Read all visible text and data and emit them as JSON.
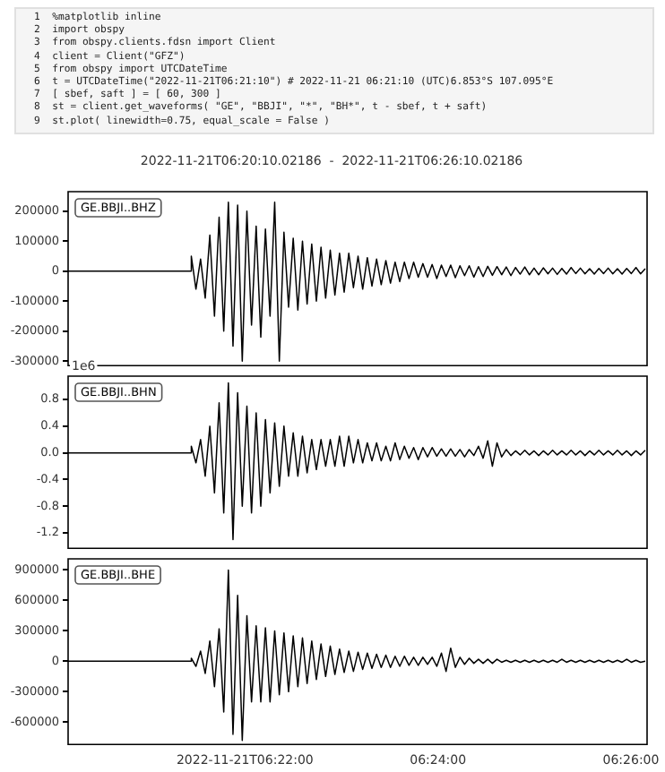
{
  "chart_data": [
    {
      "type": "other",
      "annotations": [
        "1  %matplotlib inline",
        "2  import obspy",
        "3  from obspy.clients.fdsn import Client",
        "4  client = Client(\"GFZ\")",
        "5  from obspy import UTCDateTime",
        "6  t = UTCDateTime(\"2022-11-21T06:21:10\") # 2022-11-21 06:21:10 (UTC)6.853°S 107.095°E",
        "7  [ sbef, saft ] = [ 60, 300 ]",
        "8  st = client.get_waveforms( \"GE\", \"BBJI\", \"*\", \"BH*\", t - sbef, t + saft)",
        "9  st.plot( linewidth=0.75, equal_scale = False )"
      ]
    },
    {
      "type": "line",
      "title": "2022-11-21T06:20:10.02186  -  2022-11-21T06:26:10.02186",
      "legend": "top left",
      "tick_labels": "y",
      "xlim": [
        6.33612,
        6.43612
      ],
      "ylim": [
        -315000,
        265000
      ],
      "yticks": [
        -300000,
        -200000,
        -100000,
        0,
        100000,
        200000
      ],
      "x": [
        6.33612,
        6.3572,
        6.3574,
        6.3582,
        6.359,
        6.3598,
        6.3606,
        6.3614,
        6.3622,
        6.363,
        6.3638,
        6.3646,
        6.3654,
        6.3662,
        6.367,
        6.3678,
        6.3686,
        6.3694,
        6.3702,
        6.371,
        6.3718,
        6.3726,
        6.3734,
        6.3742,
        6.375,
        6.3758,
        6.3766,
        6.3774,
        6.3782,
        6.379,
        6.3798,
        6.3806,
        6.3814,
        6.3822,
        6.383,
        6.3838,
        6.3846,
        6.3854,
        6.3862,
        6.387,
        6.3878,
        6.3886,
        6.3894,
        6.3902,
        6.391,
        6.3918,
        6.3926,
        6.3934,
        6.3942,
        6.395,
        6.3958,
        6.3966,
        6.3974,
        6.3982,
        6.399,
        6.3998,
        6.4006,
        6.4014,
        6.4022,
        6.403,
        6.4038,
        6.4046,
        6.4054,
        6.4062,
        6.407,
        6.4078,
        6.4086,
        6.4094,
        6.4102,
        6.411,
        6.4118,
        6.4126,
        6.4134,
        6.4142,
        6.415,
        6.4158,
        6.4166,
        6.4174,
        6.4182,
        6.419,
        6.4198,
        6.4206,
        6.4214,
        6.4222,
        6.423,
        6.4238,
        6.4246,
        6.4254,
        6.4262,
        6.427,
        6.4278,
        6.4286,
        6.4294,
        6.4302,
        6.431,
        6.4318,
        6.4326,
        6.4334,
        6.4342,
        6.435,
        6.4358
      ],
      "series": [
        {
          "name": "GE.BBJI..BHZ",
          "color": "#000000",
          "values": [
            0,
            0,
            50000,
            -60000,
            40000,
            -90000,
            120000,
            -150000,
            180000,
            -200000,
            230000,
            -250000,
            220000,
            -300000,
            200000,
            -180000,
            150000,
            -220000,
            140000,
            -150000,
            230000,
            -300000,
            130000,
            -120000,
            110000,
            -130000,
            100000,
            -110000,
            90000,
            -100000,
            80000,
            -90000,
            70000,
            -80000,
            60000,
            -70000,
            60000,
            -55000,
            50000,
            -60000,
            45000,
            -50000,
            40000,
            -45000,
            35000,
            -40000,
            30000,
            -35000,
            30000,
            -25000,
            30000,
            -20000,
            25000,
            -20000,
            22000,
            -25000,
            20000,
            -18000,
            20000,
            -22000,
            18000,
            -15000,
            18000,
            -20000,
            15000,
            -18000,
            16000,
            -14000,
            15000,
            -12000,
            14000,
            -15000,
            12000,
            -10000,
            14000,
            -12000,
            10000,
            -12000,
            11000,
            -9000,
            10000,
            -11000,
            9000,
            -10000,
            12000,
            -8000,
            10000,
            -9000,
            8000,
            -10000,
            9000,
            -8000,
            10000,
            -9000,
            8000,
            -10000,
            9000,
            -8000,
            12000,
            -9000,
            8000
          ]
        }
      ]
    },
    {
      "type": "line",
      "legend": "top left",
      "tick_labels": "y",
      "annotations": [
        "1e6"
      ],
      "xlim": [
        6.33612,
        6.43612
      ],
      "ylim": [
        -1.43,
        1.15
      ],
      "yticks": [
        -1.2,
        -0.8,
        -0.4,
        {
          "value": 0,
          "label": "0.0"
        },
        0.4,
        0.8
      ],
      "x": [
        6.33612,
        6.3572,
        6.3574,
        6.3582,
        6.359,
        6.3598,
        6.3606,
        6.3614,
        6.3622,
        6.363,
        6.3638,
        6.3646,
        6.3654,
        6.3662,
        6.367,
        6.3678,
        6.3686,
        6.3694,
        6.3702,
        6.371,
        6.3718,
        6.3726,
        6.3734,
        6.3742,
        6.375,
        6.3758,
        6.3766,
        6.3774,
        6.3782,
        6.379,
        6.3798,
        6.3806,
        6.3814,
        6.3822,
        6.383,
        6.3838,
        6.3846,
        6.3854,
        6.3862,
        6.387,
        6.3878,
        6.3886,
        6.3894,
        6.3902,
        6.391,
        6.3918,
        6.3926,
        6.3934,
        6.3942,
        6.395,
        6.3958,
        6.3966,
        6.3974,
        6.3982,
        6.399,
        6.3998,
        6.4006,
        6.4014,
        6.4022,
        6.403,
        6.4038,
        6.4046,
        6.4054,
        6.4062,
        6.407,
        6.4078,
        6.4086,
        6.4094,
        6.4102,
        6.411,
        6.4118,
        6.4126,
        6.4134,
        6.4142,
        6.415,
        6.4158,
        6.4166,
        6.4174,
        6.4182,
        6.419,
        6.4198,
        6.4206,
        6.4214,
        6.4222,
        6.423,
        6.4238,
        6.4246,
        6.4254,
        6.4262,
        6.427,
        6.4278,
        6.4286,
        6.4294,
        6.4302,
        6.431,
        6.4318,
        6.4326,
        6.4334,
        6.4342,
        6.435,
        6.4358
      ],
      "series": [
        {
          "name": "GE.BBJI..BHN",
          "color": "#000000",
          "values": [
            0,
            0,
            0.1,
            -0.15,
            0.2,
            -0.35,
            0.4,
            -0.6,
            0.75,
            -0.9,
            1.05,
            -1.3,
            0.9,
            -0.8,
            0.7,
            -0.9,
            0.6,
            -0.8,
            0.5,
            -0.6,
            0.45,
            -0.5,
            0.4,
            -0.35,
            0.3,
            -0.35,
            0.25,
            -0.3,
            0.2,
            -0.25,
            0.2,
            -0.2,
            0.2,
            -0.2,
            0.25,
            -0.2,
            0.25,
            -0.15,
            0.2,
            -0.15,
            0.15,
            -0.12,
            0.15,
            -0.12,
            0.1,
            -0.12,
            0.15,
            -0.1,
            0.1,
            -0.08,
            0.08,
            -0.1,
            0.08,
            -0.06,
            0.08,
            -0.05,
            0.06,
            -0.05,
            0.06,
            -0.05,
            0.05,
            -0.06,
            0.05,
            -0.04,
            0.1,
            -0.08,
            0.18,
            -0.2,
            0.15,
            -0.06,
            0.05,
            -0.04,
            0.03,
            -0.03,
            0.04,
            -0.03,
            0.03,
            -0.04,
            0.03,
            -0.03,
            0.04,
            -0.03,
            0.03,
            -0.03,
            0.04,
            -0.03,
            0.03,
            -0.04,
            0.03,
            -0.03,
            0.04,
            -0.03,
            0.03,
            -0.03,
            0.04,
            -0.03,
            0.03,
            -0.04,
            0.03,
            -0.03,
            0.04
          ]
        }
      ]
    },
    {
      "type": "line",
      "legend": "top left",
      "xlim": [
        6.33612,
        6.43612
      ],
      "xticks": [
        {
          "value": 6.36667,
          "label": "2022-11-21T06:22:00"
        },
        {
          "value": 6.4,
          "label": "06:24:00"
        },
        {
          "value": 6.43333,
          "label": "06:26:00"
        }
      ],
      "ylim": [
        -820000,
        1010000
      ],
      "yticks": [
        -600000,
        -300000,
        0,
        300000,
        600000,
        900000
      ],
      "x": [
        6.33612,
        6.3572,
        6.3574,
        6.3582,
        6.359,
        6.3598,
        6.3606,
        6.3614,
        6.3622,
        6.363,
        6.3638,
        6.3646,
        6.3654,
        6.3662,
        6.367,
        6.3678,
        6.3686,
        6.3694,
        6.3702,
        6.371,
        6.3718,
        6.3726,
        6.3734,
        6.3742,
        6.375,
        6.3758,
        6.3766,
        6.3774,
        6.3782,
        6.379,
        6.3798,
        6.3806,
        6.3814,
        6.3822,
        6.383,
        6.3838,
        6.3846,
        6.3854,
        6.3862,
        6.387,
        6.3878,
        6.3886,
        6.3894,
        6.3902,
        6.391,
        6.3918,
        6.3926,
        6.3934,
        6.3942,
        6.395,
        6.3958,
        6.3966,
        6.3974,
        6.3982,
        6.399,
        6.3998,
        6.4006,
        6.4014,
        6.4022,
        6.403,
        6.4038,
        6.4046,
        6.4054,
        6.4062,
        6.407,
        6.4078,
        6.4086,
        6.4094,
        6.4102,
        6.411,
        6.4118,
        6.4126,
        6.4134,
        6.4142,
        6.415,
        6.4158,
        6.4166,
        6.4174,
        6.4182,
        6.419,
        6.4198,
        6.4206,
        6.4214,
        6.4222,
        6.423,
        6.4238,
        6.4246,
        6.4254,
        6.4262,
        6.427,
        6.4278,
        6.4286,
        6.4294,
        6.4302,
        6.431,
        6.4318,
        6.4326,
        6.4334,
        6.4342,
        6.435,
        6.4358
      ],
      "series": [
        {
          "name": "GE.BBJI..BHE",
          "color": "#000000",
          "values": [
            0,
            0,
            30000,
            -50000,
            100000,
            -120000,
            200000,
            -250000,
            320000,
            -500000,
            900000,
            -720000,
            650000,
            -780000,
            450000,
            -400000,
            350000,
            -400000,
            330000,
            -400000,
            300000,
            -330000,
            280000,
            -300000,
            250000,
            -250000,
            230000,
            -220000,
            200000,
            -180000,
            170000,
            -150000,
            150000,
            -130000,
            120000,
            -110000,
            100000,
            -100000,
            90000,
            -80000,
            80000,
            -70000,
            70000,
            -60000,
            60000,
            -60000,
            50000,
            -50000,
            50000,
            -40000,
            40000,
            -40000,
            40000,
            -30000,
            40000,
            -50000,
            80000,
            -100000,
            130000,
            -60000,
            40000,
            -30000,
            30000,
            -20000,
            20000,
            -20000,
            20000,
            -20000,
            20000,
            -10000,
            10000,
            -10000,
            10000,
            -10000,
            10000,
            -10000,
            10000,
            -10000,
            10000,
            -10000,
            10000,
            -10000,
            20000,
            -10000,
            10000,
            -10000,
            10000,
            -10000,
            10000,
            -10000,
            10000,
            -10000,
            10000,
            -10000,
            10000,
            -10000,
            20000,
            -10000,
            10000,
            -10000,
            0
          ]
        }
      ]
    }
  ]
}
